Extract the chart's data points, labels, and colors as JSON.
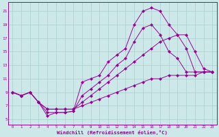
{
  "xlabel": "Windchill (Refroidissement éolien,°C)",
  "bg_color": "#cce8e8",
  "line_color": "#990099",
  "grid_color": "#aacece",
  "x_ticks": [
    0,
    1,
    2,
    3,
    4,
    5,
    6,
    7,
    8,
    9,
    10,
    11,
    12,
    13,
    14,
    15,
    16,
    17,
    18,
    19,
    20,
    21,
    22,
    23
  ],
  "y_ticks": [
    5,
    7,
    9,
    11,
    13,
    15,
    17,
    19,
    21
  ],
  "xlim": [
    -0.5,
    23.5
  ],
  "ylim": [
    4.2,
    22.3
  ],
  "series": [
    {
      "x": [
        0,
        1,
        2,
        3,
        4,
        5,
        6,
        7,
        8,
        9,
        10,
        11,
        12,
        13,
        14,
        15,
        16,
        17,
        18,
        19,
        20,
        21,
        22,
        23
      ],
      "y": [
        9.0,
        8.5,
        9.0,
        7.5,
        5.5,
        6.0,
        6.0,
        6.2,
        10.5,
        11.0,
        11.5,
        13.5,
        14.5,
        15.5,
        19.0,
        21.0,
        21.5,
        21.0,
        19.0,
        17.5,
        15.5,
        12.0,
        12.0,
        12.0
      ]
    },
    {
      "x": [
        0,
        1,
        2,
        3,
        4,
        5,
        6,
        7,
        8,
        9,
        10,
        11,
        12,
        13,
        14,
        15,
        16,
        17,
        18,
        19,
        20,
        21,
        22,
        23
      ],
      "y": [
        9.0,
        8.5,
        9.0,
        7.5,
        6.0,
        6.0,
        6.0,
        6.2,
        8.5,
        9.5,
        10.5,
        11.5,
        13.0,
        14.0,
        16.5,
        18.5,
        19.0,
        17.5,
        15.0,
        14.0,
        12.0,
        12.0,
        12.0,
        12.0
      ]
    },
    {
      "x": [
        0,
        1,
        2,
        3,
        4,
        5,
        6,
        7,
        8,
        9,
        10,
        11,
        12,
        13,
        14,
        15,
        16,
        17,
        18,
        19,
        20,
        21,
        22,
        23
      ],
      "y": [
        9.0,
        8.5,
        9.0,
        7.5,
        6.5,
        6.5,
        6.5,
        6.5,
        7.5,
        8.5,
        9.5,
        10.5,
        11.5,
        12.5,
        13.5,
        14.5,
        15.5,
        16.5,
        17.0,
        17.5,
        17.5,
        15.0,
        12.5,
        12.0
      ]
    },
    {
      "x": [
        0,
        1,
        2,
        3,
        4,
        5,
        6,
        7,
        8,
        9,
        10,
        11,
        12,
        13,
        14,
        15,
        16,
        17,
        18,
        19,
        20,
        21,
        22,
        23
      ],
      "y": [
        9.0,
        8.5,
        9.0,
        7.5,
        6.5,
        6.5,
        6.5,
        6.5,
        7.0,
        7.5,
        8.0,
        8.5,
        9.0,
        9.5,
        10.0,
        10.5,
        11.0,
        11.0,
        11.5,
        11.5,
        11.5,
        11.5,
        12.0,
        12.0
      ]
    }
  ]
}
